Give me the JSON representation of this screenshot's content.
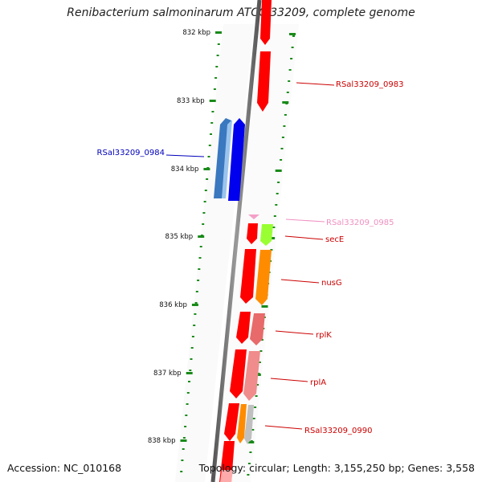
{
  "title": "Renibacterium salmoninarum ATCC 33209, complete genome",
  "accession": "Accession: NC_010168",
  "topology_summary": "Topology: circular; Length: 3,155,250 bp; Genes: 3,558",
  "axis_ticks": [
    "832 kbp",
    "833 kbp",
    "834 kbp",
    "835 kbp",
    "836 kbp",
    "837 kbp",
    "838 kbp"
  ],
  "genes": [
    {
      "label": "RSal33209_0983",
      "strand": "+",
      "color": "#ff0000"
    },
    {
      "label": "RSal33209_0984",
      "strand": "-",
      "color": "#0000ee"
    },
    {
      "label": "RSal33209_0985",
      "strand": "+",
      "color": "#f4a0c8"
    },
    {
      "label": "secE",
      "strand": "+",
      "color": "#ff0000"
    },
    {
      "label": "nusG",
      "strand": "+",
      "color": "#ff0000"
    },
    {
      "label": "rplK",
      "strand": "+",
      "color": "#ff0000"
    },
    {
      "label": "rplA",
      "strand": "+",
      "color": "#ff0000"
    },
    {
      "label": "RSal33209_0990",
      "strand": "+",
      "color": "#ff0000"
    }
  ]
}
